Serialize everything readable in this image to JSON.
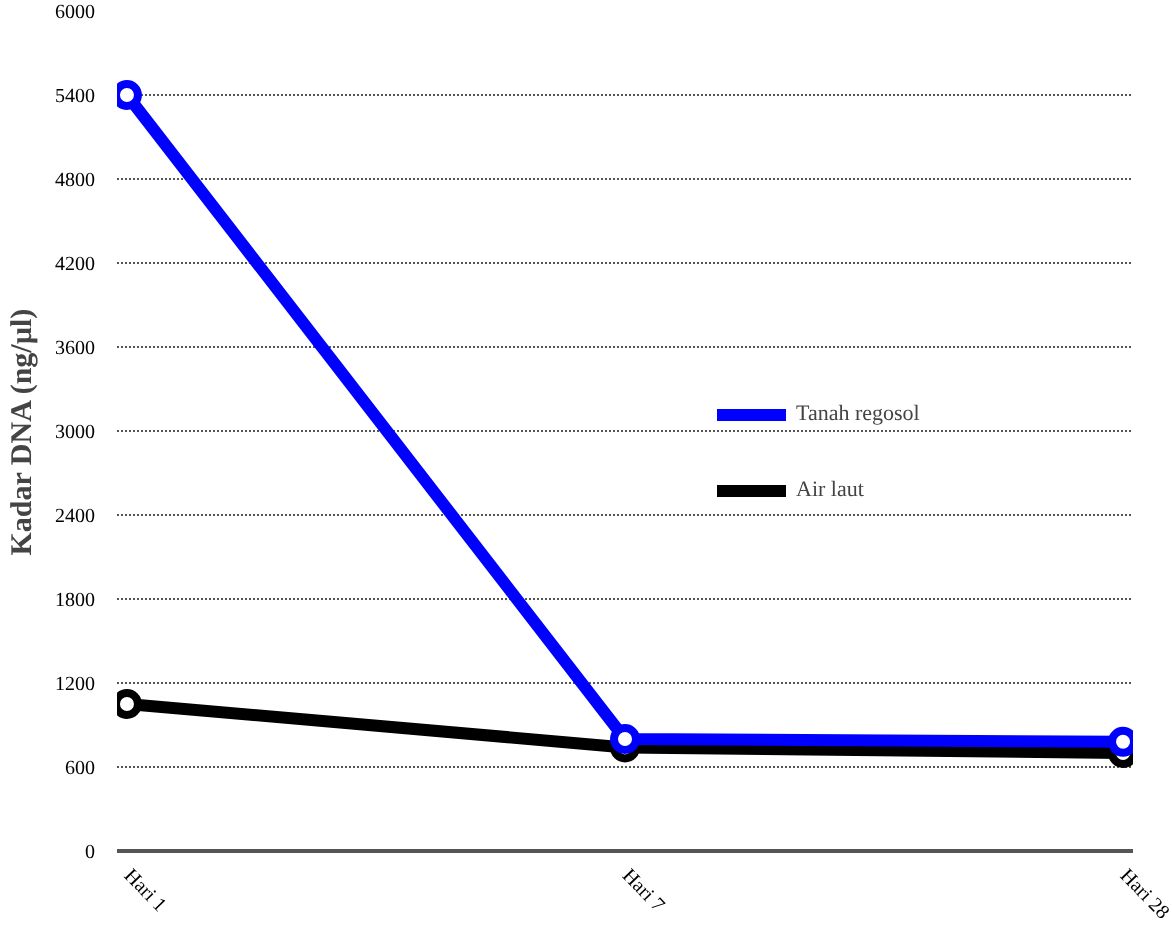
{
  "chart_data": {
    "type": "line",
    "ylabel": "Kadar DNA (ng/µl)",
    "categories": [
      "Hari 1",
      "Hari 7",
      "Hari 28"
    ],
    "series": [
      {
        "name": "Tanah regosol",
        "color": "#0000ff",
        "values": [
          5400,
          800,
          780
        ]
      },
      {
        "name": "Air laut",
        "color": "#000000",
        "values": [
          1050,
          740,
          700
        ]
      }
    ],
    "ylim": [
      0,
      6000
    ],
    "yticks": [
      0,
      600,
      1200,
      1800,
      2400,
      3000,
      3600,
      4200,
      4800,
      5400,
      6000
    ],
    "grid": "y",
    "legend": "right",
    "marker": "circle",
    "line_style": "solid"
  }
}
